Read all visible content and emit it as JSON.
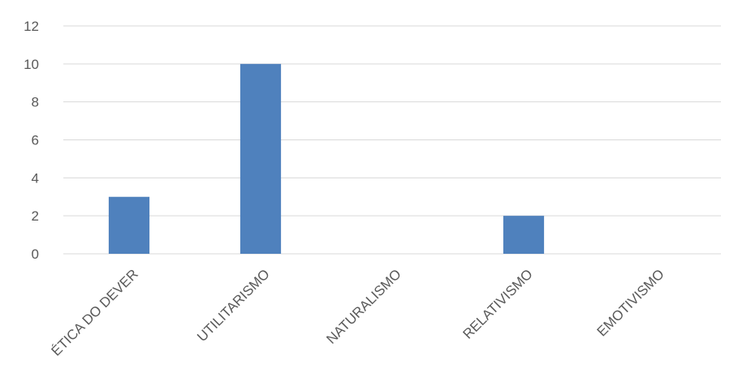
{
  "chart_data": {
    "type": "bar",
    "categories": [
      "ÉTICA DO DEVER",
      "UTILITARISMO",
      "NATURALISMO",
      "RELATIVISMO",
      "EMOTIVISMO"
    ],
    "values": [
      3,
      10,
      0,
      2,
      0
    ],
    "title": "",
    "xlabel": "",
    "ylabel": "",
    "ylim": [
      0,
      12
    ],
    "yticks": [
      0,
      2,
      4,
      6,
      8,
      10,
      12
    ],
    "grid": true,
    "legend": "none",
    "bar_color": "#4f81bd"
  }
}
